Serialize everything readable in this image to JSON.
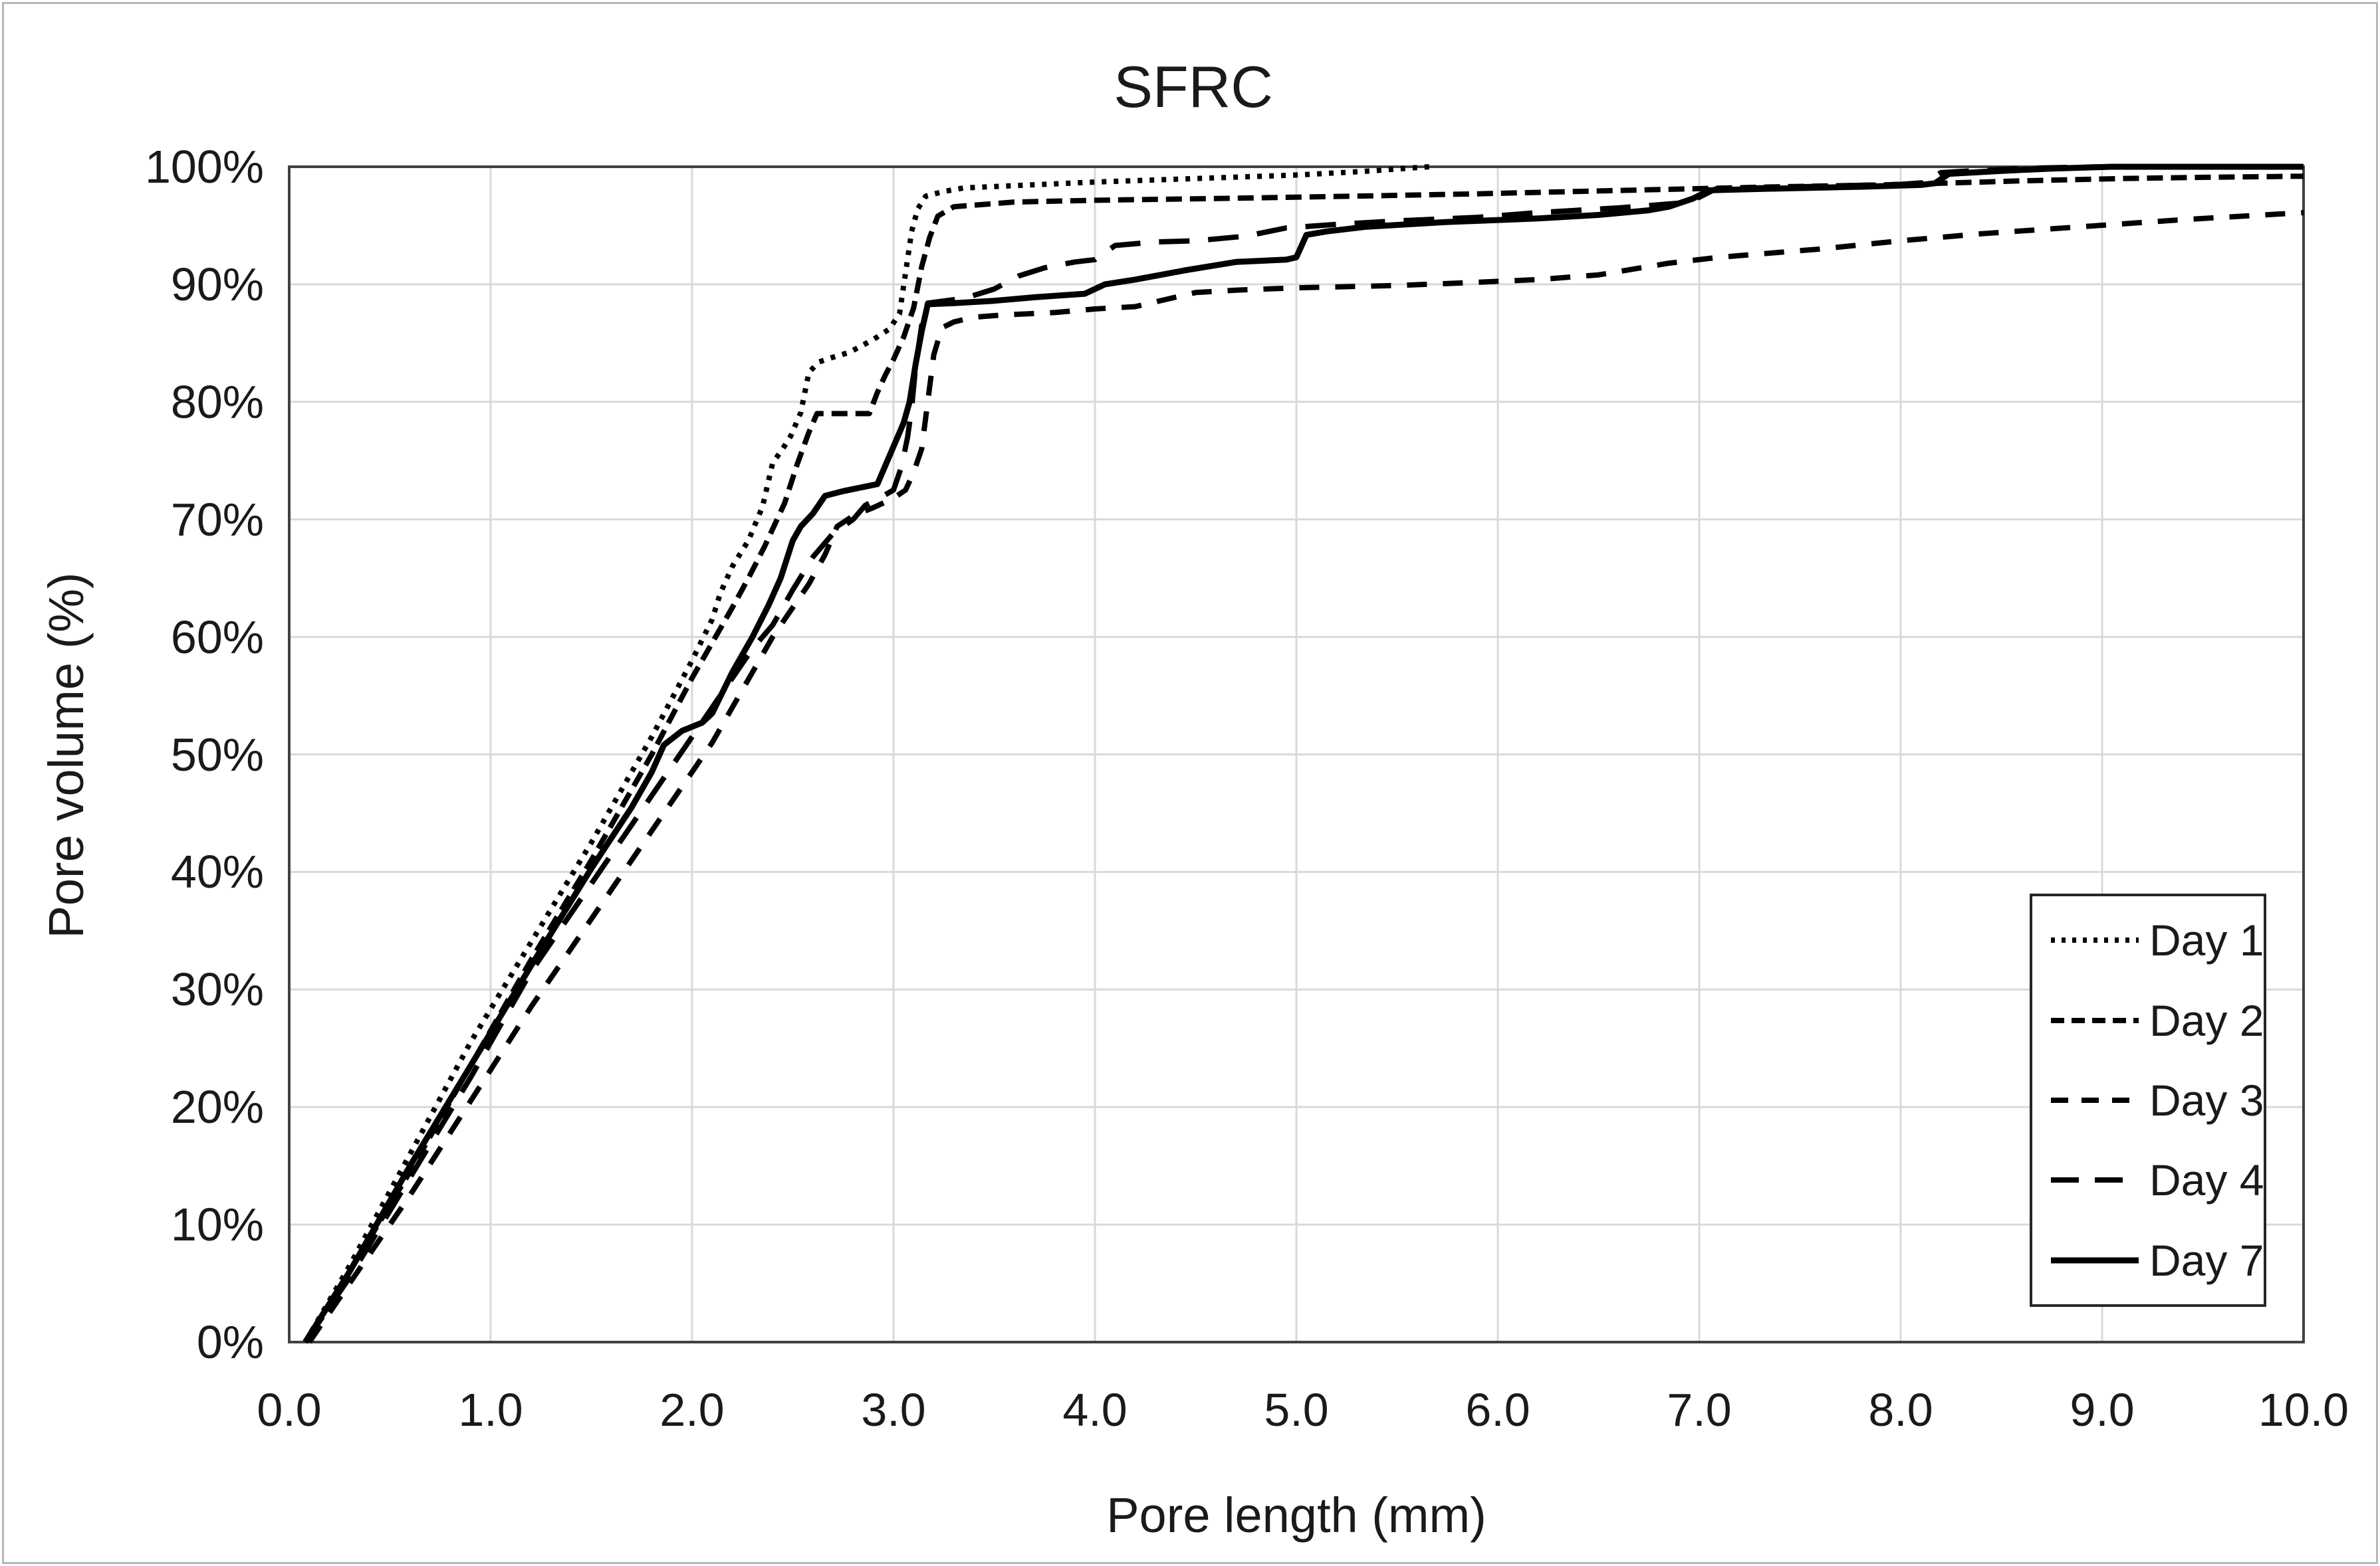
{
  "figure": {
    "title": "SFRC"
  },
  "axes": {
    "x": {
      "label": "Pore length (mm)",
      "min": 0,
      "max": 10,
      "tick_step": 1,
      "ticks": [
        "0.0",
        "1.0",
        "2.0",
        "3.0",
        "4.0",
        "5.0",
        "6.0",
        "7.0",
        "8.0",
        "9.0",
        "10.0"
      ]
    },
    "y": {
      "label": "Pore volume (%)",
      "min": 0,
      "max": 100,
      "tick_step": 10,
      "ticks": [
        "0%",
        "10%",
        "20%",
        "30%",
        "40%",
        "50%",
        "60%",
        "70%",
        "80%",
        "90%",
        "100%"
      ]
    }
  },
  "legend": {
    "position": "right-middle"
  },
  "colors": {
    "series": "#000000",
    "grid": "#d9d9d9",
    "plot_border": "#404040",
    "outer_border": "#b7b7b7",
    "text": "#1a1a1a",
    "background": "#ffffff"
  },
  "chart_data": {
    "type": "line",
    "title": "SFRC",
    "xlabel": "Pore length (mm)",
    "ylabel": "Pore volume (%)",
    "xlim": [
      0,
      10
    ],
    "ylim": [
      0,
      100
    ],
    "grid": true,
    "legend_position": "right-middle",
    "series": [
      {
        "name": "Day 1",
        "line_style": "dotted",
        "points": [
          [
            0.08,
            0
          ],
          [
            0.3,
            6.5
          ],
          [
            0.6,
            16
          ],
          [
            0.9,
            25.5
          ],
          [
            1.2,
            34
          ],
          [
            1.5,
            42.5
          ],
          [
            1.8,
            51.5
          ],
          [
            2.0,
            58
          ],
          [
            2.1,
            61.5
          ],
          [
            2.14,
            63.7
          ],
          [
            2.2,
            66
          ],
          [
            2.28,
            68.2
          ],
          [
            2.35,
            71.1
          ],
          [
            2.4,
            74.8
          ],
          [
            2.45,
            76
          ],
          [
            2.49,
            77.1
          ],
          [
            2.54,
            79.1
          ],
          [
            2.58,
            82.5
          ],
          [
            2.63,
            83.4
          ],
          [
            2.7,
            83.8
          ],
          [
            2.78,
            84.2
          ],
          [
            2.9,
            85.3
          ],
          [
            2.98,
            86.2
          ],
          [
            3.03,
            87.5
          ],
          [
            3.06,
            91
          ],
          [
            3.09,
            94.5
          ],
          [
            3.12,
            96.4
          ],
          [
            3.16,
            97.5
          ],
          [
            3.25,
            97.9
          ],
          [
            3.35,
            98.2
          ],
          [
            4.0,
            98.7
          ],
          [
            4.5,
            99.0
          ],
          [
            5.0,
            99.3
          ],
          [
            5.33,
            99.6
          ],
          [
            5.57,
            99.9
          ],
          [
            5.66,
            100
          ]
        ]
      },
      {
        "name": "Day 2",
        "line_style": "dash-short",
        "points": [
          [
            0.08,
            0
          ],
          [
            0.3,
            6
          ],
          [
            0.6,
            14.5
          ],
          [
            0.9,
            23.5
          ],
          [
            1.2,
            32.5
          ],
          [
            1.5,
            41
          ],
          [
            1.8,
            50
          ],
          [
            2.0,
            56.5
          ],
          [
            2.1,
            59.5
          ],
          [
            2.2,
            62.5
          ],
          [
            2.28,
            65
          ],
          [
            2.36,
            67.7
          ],
          [
            2.46,
            71.4
          ],
          [
            2.52,
            74.6
          ],
          [
            2.58,
            77.4
          ],
          [
            2.62,
            79
          ],
          [
            2.88,
            79
          ],
          [
            2.92,
            80.8
          ],
          [
            2.96,
            82.3
          ],
          [
            3.0,
            83.6
          ],
          [
            3.05,
            85.5
          ],
          [
            3.1,
            88
          ],
          [
            3.14,
            91.5
          ],
          [
            3.18,
            94
          ],
          [
            3.22,
            95.8
          ],
          [
            3.3,
            96.6
          ],
          [
            3.6,
            97.0
          ],
          [
            4.0,
            97.15
          ],
          [
            4.6,
            97.3
          ],
          [
            5.3,
            97.5
          ],
          [
            5.9,
            97.7
          ],
          [
            6.4,
            97.9
          ],
          [
            6.9,
            98.1
          ],
          [
            7.4,
            98.3
          ],
          [
            7.9,
            98.45
          ],
          [
            8.2,
            98.6
          ],
          [
            8.6,
            98.8
          ],
          [
            9.1,
            99.0
          ],
          [
            9.5,
            99.1
          ],
          [
            10,
            99.2
          ]
        ]
      },
      {
        "name": "Day 3",
        "line_style": "dash-medium",
        "points": [
          [
            0.1,
            0
          ],
          [
            0.3,
            5
          ],
          [
            0.6,
            12.5
          ],
          [
            0.9,
            20.5
          ],
          [
            1.2,
            28.5
          ],
          [
            1.5,
            36
          ],
          [
            1.8,
            43.5
          ],
          [
            2.0,
            48.5
          ],
          [
            2.1,
            51
          ],
          [
            2.2,
            54
          ],
          [
            2.3,
            57
          ],
          [
            2.4,
            60
          ],
          [
            2.5,
            62.5
          ],
          [
            2.58,
            64.5
          ],
          [
            2.66,
            67
          ],
          [
            2.72,
            69.4
          ],
          [
            2.8,
            70.3
          ],
          [
            2.9,
            71
          ],
          [
            3.0,
            71.8
          ],
          [
            3.06,
            72.5
          ],
          [
            3.1,
            74
          ],
          [
            3.14,
            76
          ],
          [
            3.17,
            80
          ],
          [
            3.2,
            84
          ],
          [
            3.24,
            86.3
          ],
          [
            3.3,
            86.8
          ],
          [
            3.4,
            87.2
          ],
          [
            3.55,
            87.4
          ],
          [
            3.8,
            87.6
          ],
          [
            4.0,
            87.9
          ],
          [
            4.2,
            88.1
          ],
          [
            4.35,
            88.7
          ],
          [
            4.5,
            89.3
          ],
          [
            4.7,
            89.5
          ],
          [
            5.0,
            89.7
          ],
          [
            5.5,
            89.9
          ],
          [
            5.8,
            90.1
          ],
          [
            6.2,
            90.4
          ],
          [
            6.5,
            90.8
          ],
          [
            6.85,
            91.8
          ],
          [
            7.1,
            92.3
          ],
          [
            7.6,
            93.0
          ],
          [
            8.0,
            93.7
          ],
          [
            8.4,
            94.3
          ],
          [
            8.9,
            94.9
          ],
          [
            9.4,
            95.5
          ],
          [
            10,
            96.1
          ]
        ]
      },
      {
        "name": "Day 4",
        "line_style": "dash-long",
        "points": [
          [
            0.08,
            0
          ],
          [
            0.3,
            5.5
          ],
          [
            0.6,
            14
          ],
          [
            0.9,
            22.5
          ],
          [
            1.2,
            31.5
          ],
          [
            1.5,
            39
          ],
          [
            1.8,
            46.5
          ],
          [
            1.9,
            49
          ],
          [
            2.0,
            51.5
          ],
          [
            2.1,
            54
          ],
          [
            2.2,
            56.5
          ],
          [
            2.3,
            59
          ],
          [
            2.4,
            61
          ],
          [
            2.5,
            64
          ],
          [
            2.6,
            66.8
          ],
          [
            2.7,
            68.8
          ],
          [
            2.8,
            70
          ],
          [
            2.86,
            71.2
          ],
          [
            2.95,
            72
          ],
          [
            3.0,
            72.5
          ],
          [
            3.04,
            74.5
          ],
          [
            3.07,
            77
          ],
          [
            3.09,
            79.5
          ],
          [
            3.11,
            83
          ],
          [
            3.14,
            86.5
          ],
          [
            3.17,
            88.4
          ],
          [
            3.35,
            88.8
          ],
          [
            3.5,
            89.6
          ],
          [
            3.62,
            90.7
          ],
          [
            3.75,
            91.4
          ],
          [
            3.9,
            91.9
          ],
          [
            4.0,
            92.1
          ],
          [
            4.1,
            93.3
          ],
          [
            4.3,
            93.6
          ],
          [
            4.5,
            93.7
          ],
          [
            4.75,
            94.1
          ],
          [
            4.95,
            94.8
          ],
          [
            5.2,
            95.1
          ],
          [
            5.5,
            95.4
          ],
          [
            5.9,
            95.7
          ],
          [
            6.2,
            96.1
          ],
          [
            6.6,
            96.5
          ],
          [
            6.9,
            96.9
          ],
          [
            7.0,
            97.4
          ],
          [
            7.08,
            98.1
          ],
          [
            7.5,
            98.3
          ],
          [
            8.0,
            98.5
          ],
          [
            8.12,
            98.65
          ],
          [
            8.2,
            99.5
          ],
          [
            8.4,
            99.7
          ],
          [
            8.7,
            99.9
          ],
          [
            9.0,
            100
          ],
          [
            10,
            100
          ]
        ]
      },
      {
        "name": "Day 7",
        "line_style": "solid",
        "points": [
          [
            0.08,
            0
          ],
          [
            0.3,
            6
          ],
          [
            0.6,
            15
          ],
          [
            0.9,
            23.5
          ],
          [
            1.2,
            32
          ],
          [
            1.5,
            40.3
          ],
          [
            1.7,
            45.5
          ],
          [
            1.8,
            48.5
          ],
          [
            1.86,
            50.8
          ],
          [
            1.95,
            52
          ],
          [
            2.05,
            52.7
          ],
          [
            2.1,
            53.5
          ],
          [
            2.2,
            57
          ],
          [
            2.3,
            60
          ],
          [
            2.38,
            62.7
          ],
          [
            2.44,
            65
          ],
          [
            2.5,
            68.2
          ],
          [
            2.54,
            69.4
          ],
          [
            2.6,
            70.5
          ],
          [
            2.66,
            72
          ],
          [
            2.75,
            72.4
          ],
          [
            2.92,
            73
          ],
          [
            2.97,
            75
          ],
          [
            3.02,
            77
          ],
          [
            3.05,
            78.2
          ],
          [
            3.08,
            80
          ],
          [
            3.11,
            83.2
          ],
          [
            3.14,
            86
          ],
          [
            3.17,
            88.3
          ],
          [
            3.3,
            88.4
          ],
          [
            3.5,
            88.6
          ],
          [
            3.7,
            88.9
          ],
          [
            3.95,
            89.2
          ],
          [
            4.05,
            90
          ],
          [
            4.2,
            90.4
          ],
          [
            4.45,
            91.2
          ],
          [
            4.7,
            91.9
          ],
          [
            4.95,
            92.1
          ],
          [
            5.0,
            92.3
          ],
          [
            5.05,
            94.2
          ],
          [
            5.15,
            94.5
          ],
          [
            5.35,
            94.9
          ],
          [
            5.75,
            95.3
          ],
          [
            6.2,
            95.6
          ],
          [
            6.5,
            95.9
          ],
          [
            6.75,
            96.3
          ],
          [
            6.85,
            96.6
          ],
          [
            6.97,
            97.3
          ],
          [
            7.05,
            98.0
          ],
          [
            7.4,
            98.15
          ],
          [
            7.8,
            98.3
          ],
          [
            8.1,
            98.45
          ],
          [
            8.17,
            98.6
          ],
          [
            8.24,
            99.4
          ],
          [
            8.5,
            99.65
          ],
          [
            8.75,
            99.85
          ],
          [
            9.05,
            100
          ],
          [
            10,
            100
          ]
        ]
      }
    ]
  }
}
